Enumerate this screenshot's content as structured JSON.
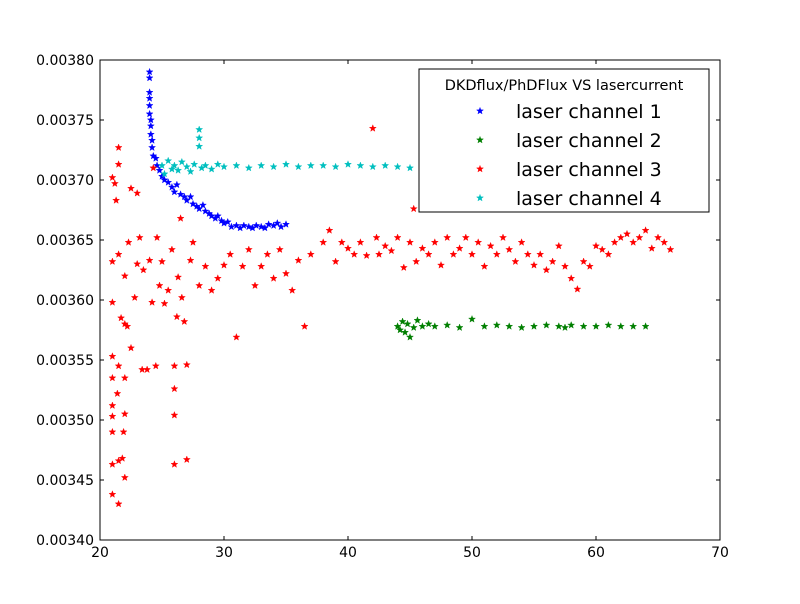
{
  "chart_data": {
    "type": "scatter",
    "title": "",
    "xlabel": "",
    "ylabel": "",
    "xlim": [
      20,
      70
    ],
    "ylim": [
      0.0034,
      0.0038
    ],
    "x_ticks": [
      20,
      30,
      40,
      50,
      60,
      70
    ],
    "x_tick_labels": [
      "20",
      "30",
      "40",
      "50",
      "60",
      "70"
    ],
    "y_ticks": [
      0.0034,
      0.00345,
      0.0035,
      0.00355,
      0.0036,
      0.00365,
      0.0037,
      0.00375,
      0.0038
    ],
    "y_tick_labels": [
      "0.00340",
      "0.00345",
      "0.00350",
      "0.00355",
      "0.00360",
      "0.00365",
      "0.00370",
      "0.00375",
      "0.00380"
    ],
    "grid": false,
    "marker": "star",
    "legend": {
      "title": "DKDflux/PhDFlux VS lasercurrent",
      "placement": "top-right"
    },
    "series": [
      {
        "name": "laser channel 1",
        "color": "#0000ff",
        "points": [
          [
            24.0,
            0.00379
          ],
          [
            24.0,
            0.003785
          ],
          [
            24.0,
            0.003773
          ],
          [
            24.0,
            0.003768
          ],
          [
            24.0,
            0.003762
          ],
          [
            24.0,
            0.003755
          ],
          [
            24.1,
            0.00375
          ],
          [
            24.1,
            0.003745
          ],
          [
            24.1,
            0.003738
          ],
          [
            24.2,
            0.003733
          ],
          [
            24.2,
            0.003727
          ],
          [
            24.3,
            0.00372
          ],
          [
            24.5,
            0.003718
          ],
          [
            24.6,
            0.003712
          ],
          [
            24.8,
            0.003708
          ],
          [
            25.0,
            0.003703
          ],
          [
            25.2,
            0.0037
          ],
          [
            25.5,
            0.003698
          ],
          [
            25.8,
            0.003694
          ],
          [
            26.0,
            0.00369
          ],
          [
            26.2,
            0.003696
          ],
          [
            26.5,
            0.003688
          ],
          [
            26.8,
            0.003686
          ],
          [
            27.0,
            0.003683
          ],
          [
            27.3,
            0.003686
          ],
          [
            27.5,
            0.00368
          ],
          [
            27.8,
            0.003678
          ],
          [
            28.0,
            0.003676
          ],
          [
            28.3,
            0.003679
          ],
          [
            28.5,
            0.003674
          ],
          [
            28.8,
            0.003672
          ],
          [
            29.0,
            0.00367
          ],
          [
            29.3,
            0.003668
          ],
          [
            29.5,
            0.00367
          ],
          [
            29.8,
            0.003666
          ],
          [
            30.0,
            0.003664
          ],
          [
            30.3,
            0.003665
          ],
          [
            30.6,
            0.003661
          ],
          [
            31.0,
            0.003662
          ],
          [
            31.3,
            0.00366
          ],
          [
            31.6,
            0.003662
          ],
          [
            32.0,
            0.003661
          ],
          [
            32.3,
            0.00366
          ],
          [
            32.6,
            0.003662
          ],
          [
            33.0,
            0.003661
          ],
          [
            33.3,
            0.00366
          ],
          [
            33.6,
            0.003663
          ],
          [
            34.0,
            0.003662
          ],
          [
            34.3,
            0.003664
          ],
          [
            34.6,
            0.003661
          ],
          [
            35.0,
            0.003663
          ]
        ]
      },
      {
        "name": "laser channel 2",
        "color": "#007f00",
        "points": [
          [
            44.0,
            0.003578
          ],
          [
            44.2,
            0.003575
          ],
          [
            44.4,
            0.003582
          ],
          [
            44.6,
            0.003573
          ],
          [
            44.8,
            0.00358
          ],
          [
            45.0,
            0.003569
          ],
          [
            45.3,
            0.003577
          ],
          [
            45.6,
            0.003583
          ],
          [
            46.0,
            0.003578
          ],
          [
            46.5,
            0.00358
          ],
          [
            47.0,
            0.003578
          ],
          [
            48.0,
            0.003579
          ],
          [
            49.0,
            0.003577
          ],
          [
            50.0,
            0.003584
          ],
          [
            51.0,
            0.003578
          ],
          [
            52.0,
            0.003579
          ],
          [
            53.0,
            0.003578
          ],
          [
            54.0,
            0.003577
          ],
          [
            55.0,
            0.003578
          ],
          [
            56.0,
            0.003579
          ],
          [
            57.0,
            0.003578
          ],
          [
            57.5,
            0.003577
          ],
          [
            58.0,
            0.003579
          ],
          [
            59.0,
            0.003578
          ],
          [
            60.0,
            0.003578
          ],
          [
            61.0,
            0.003579
          ],
          [
            62.0,
            0.003578
          ],
          [
            63.0,
            0.003578
          ],
          [
            64.0,
            0.003578
          ]
        ]
      },
      {
        "name": "laser channel 3",
        "color": "#ff0000",
        "points": [
          [
            21.0,
            0.003438
          ],
          [
            21.0,
            0.003463
          ],
          [
            21.0,
            0.00349
          ],
          [
            21.0,
            0.003503
          ],
          [
            21.0,
            0.003512
          ],
          [
            21.0,
            0.003535
          ],
          [
            21.0,
            0.003553
          ],
          [
            21.0,
            0.003598
          ],
          [
            21.0,
            0.003632
          ],
          [
            21.0,
            0.003702
          ],
          [
            21.2,
            0.003697
          ],
          [
            21.3,
            0.003683
          ],
          [
            21.4,
            0.003522
          ],
          [
            21.5,
            0.00343
          ],
          [
            21.5,
            0.003466
          ],
          [
            21.5,
            0.003545
          ],
          [
            21.5,
            0.003638
          ],
          [
            21.5,
            0.003713
          ],
          [
            21.5,
            0.003727
          ],
          [
            21.7,
            0.003585
          ],
          [
            21.8,
            0.003468
          ],
          [
            21.9,
            0.00349
          ],
          [
            22.0,
            0.003452
          ],
          [
            22.0,
            0.003505
          ],
          [
            22.0,
            0.003535
          ],
          [
            22.0,
            0.00358
          ],
          [
            22.0,
            0.00362
          ],
          [
            22.2,
            0.003578
          ],
          [
            22.3,
            0.003648
          ],
          [
            22.5,
            0.003693
          ],
          [
            22.5,
            0.00356
          ],
          [
            22.8,
            0.003602
          ],
          [
            23.0,
            0.00363
          ],
          [
            23.0,
            0.003689
          ],
          [
            23.2,
            0.003652
          ],
          [
            23.4,
            0.003542
          ],
          [
            23.5,
            0.003625
          ],
          [
            23.8,
            0.003542
          ],
          [
            24.0,
            0.003633
          ],
          [
            24.2,
            0.003598
          ],
          [
            24.3,
            0.00371
          ],
          [
            24.5,
            0.003545
          ],
          [
            24.6,
            0.003652
          ],
          [
            24.8,
            0.003612
          ],
          [
            25.0,
            0.003632
          ],
          [
            25.2,
            0.003597
          ],
          [
            25.5,
            0.003608
          ],
          [
            25.8,
            0.003642
          ],
          [
            26.0,
            0.003545
          ],
          [
            26.0,
            0.003526
          ],
          [
            26.0,
            0.003504
          ],
          [
            26.0,
            0.003463
          ],
          [
            26.2,
            0.003586
          ],
          [
            26.3,
            0.003619
          ],
          [
            26.5,
            0.003668
          ],
          [
            26.6,
            0.003602
          ],
          [
            26.8,
            0.003582
          ],
          [
            27.0,
            0.003467
          ],
          [
            27.0,
            0.003546
          ],
          [
            27.3,
            0.003633
          ],
          [
            27.5,
            0.003648
          ],
          [
            28.0,
            0.003612
          ],
          [
            28.5,
            0.003628
          ],
          [
            29.0,
            0.003608
          ],
          [
            29.5,
            0.003618
          ],
          [
            30.0,
            0.003629
          ],
          [
            30.5,
            0.003638
          ],
          [
            31.0,
            0.003569
          ],
          [
            31.5,
            0.003628
          ],
          [
            32.0,
            0.003642
          ],
          [
            32.5,
            0.003612
          ],
          [
            33.0,
            0.003628
          ],
          [
            33.5,
            0.003638
          ],
          [
            34.0,
            0.003618
          ],
          [
            34.5,
            0.003642
          ],
          [
            35.0,
            0.003622
          ],
          [
            35.5,
            0.003608
          ],
          [
            36.0,
            0.003633
          ],
          [
            36.5,
            0.003578
          ],
          [
            37.0,
            0.003638
          ],
          [
            38.0,
            0.003648
          ],
          [
            38.5,
            0.003658
          ],
          [
            39.0,
            0.003632
          ],
          [
            39.5,
            0.003648
          ],
          [
            40.0,
            0.003643
          ],
          [
            40.5,
            0.003638
          ],
          [
            41.0,
            0.003648
          ],
          [
            41.5,
            0.003637
          ],
          [
            42.0,
            0.003743
          ],
          [
            42.3,
            0.003652
          ],
          [
            42.5,
            0.003638
          ],
          [
            43.0,
            0.003645
          ],
          [
            43.5,
            0.003641
          ],
          [
            44.0,
            0.003652
          ],
          [
            44.5,
            0.003627
          ],
          [
            45.0,
            0.003648
          ],
          [
            45.3,
            0.003676
          ],
          [
            45.5,
            0.003632
          ],
          [
            46.0,
            0.003643
          ],
          [
            46.5,
            0.003638
          ],
          [
            47.0,
            0.003648
          ],
          [
            47.5,
            0.003629
          ],
          [
            48.0,
            0.003652
          ],
          [
            48.5,
            0.003638
          ],
          [
            49.0,
            0.003643
          ],
          [
            49.5,
            0.003652
          ],
          [
            50.0,
            0.003638
          ],
          [
            50.5,
            0.003648
          ],
          [
            51.0,
            0.003628
          ],
          [
            51.5,
            0.003645
          ],
          [
            52.0,
            0.003638
          ],
          [
            52.5,
            0.003652
          ],
          [
            53.0,
            0.003642
          ],
          [
            53.5,
            0.003632
          ],
          [
            54.0,
            0.003648
          ],
          [
            54.5,
            0.003638
          ],
          [
            55.0,
            0.003629
          ],
          [
            55.5,
            0.003638
          ],
          [
            56.0,
            0.003625
          ],
          [
            56.5,
            0.003632
          ],
          [
            57.0,
            0.003645
          ],
          [
            57.5,
            0.003628
          ],
          [
            58.0,
            0.003618
          ],
          [
            58.5,
            0.003609
          ],
          [
            59.0,
            0.003632
          ],
          [
            59.5,
            0.003628
          ],
          [
            60.0,
            0.003645
          ],
          [
            60.5,
            0.003642
          ],
          [
            61.0,
            0.003638
          ],
          [
            61.5,
            0.003648
          ],
          [
            62.0,
            0.003652
          ],
          [
            62.5,
            0.003655
          ],
          [
            63.0,
            0.003648
          ],
          [
            63.5,
            0.003652
          ],
          [
            64.0,
            0.003658
          ],
          [
            64.5,
            0.003643
          ],
          [
            65.0,
            0.003652
          ],
          [
            65.5,
            0.003648
          ],
          [
            66.0,
            0.003642
          ]
        ]
      },
      {
        "name": "laser channel 4",
        "color": "#00bfbf",
        "points": [
          [
            25.0,
            0.003712
          ],
          [
            25.2,
            0.003705
          ],
          [
            25.5,
            0.003716
          ],
          [
            25.8,
            0.003709
          ],
          [
            26.0,
            0.003712
          ],
          [
            26.3,
            0.003708
          ],
          [
            26.6,
            0.003715
          ],
          [
            27.0,
            0.003711
          ],
          [
            27.3,
            0.003707
          ],
          [
            27.6,
            0.003713
          ],
          [
            28.0,
            0.003742
          ],
          [
            28.0,
            0.003735
          ],
          [
            28.0,
            0.003728
          ],
          [
            28.2,
            0.00371
          ],
          [
            28.5,
            0.003712
          ],
          [
            29.0,
            0.003709
          ],
          [
            29.5,
            0.003713
          ],
          [
            30.0,
            0.003711
          ],
          [
            31.0,
            0.003712
          ],
          [
            32.0,
            0.00371
          ],
          [
            33.0,
            0.003712
          ],
          [
            34.0,
            0.003711
          ],
          [
            35.0,
            0.003713
          ],
          [
            36.0,
            0.003711
          ],
          [
            37.0,
            0.003712
          ],
          [
            38.0,
            0.003712
          ],
          [
            39.0,
            0.003711
          ],
          [
            40.0,
            0.003713
          ],
          [
            41.0,
            0.003712
          ],
          [
            42.0,
            0.003711
          ],
          [
            43.0,
            0.003712
          ],
          [
            44.0,
            0.003711
          ],
          [
            45.0,
            0.00371
          ]
        ]
      }
    ]
  }
}
